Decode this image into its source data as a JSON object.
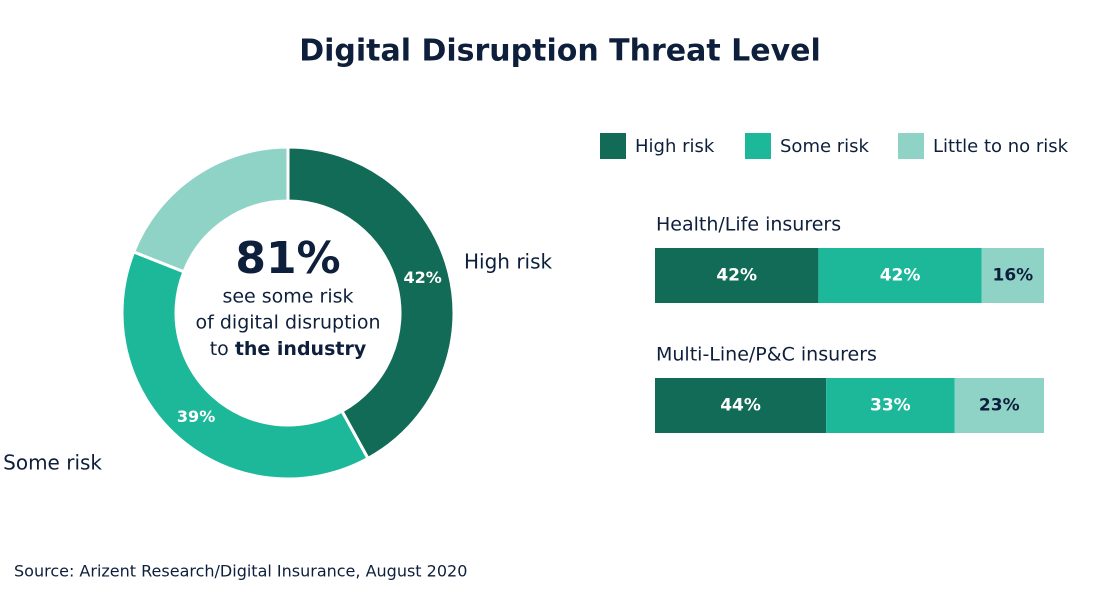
{
  "title": "Digital Disruption Threat Level",
  "source": "Source: Arizent Research/Digital Insurance, August 2020",
  "chart_data": [
    {
      "type": "pie",
      "categories": [
        "High risk",
        "Some risk",
        null
      ],
      "values": [
        42,
        39,
        19
      ],
      "value_labels": [
        "42%",
        "39%",
        null
      ],
      "colors": [
        "#126b56",
        "#1db89a",
        "#8fd3c7"
      ],
      "center_value": "81%",
      "center_lines": [
        "see some risk",
        "of digital disruption"
      ],
      "center_last": [
        "to",
        "the industry"
      ]
    },
    {
      "type": "bar",
      "orientation": "horizontal",
      "stacked": true,
      "categories": [
        "Health/Life insurers",
        "Multi-Line/P&C insurers"
      ],
      "xlim": [
        0,
        100
      ],
      "series": [
        {
          "name": "High risk",
          "color": "#126b56",
          "values": [
            42,
            44
          ],
          "value_labels": [
            "42%",
            "44%"
          ]
        },
        {
          "name": "Some risk",
          "color": "#1db89a",
          "values": [
            42,
            33
          ],
          "value_labels": [
            "42%",
            "33%"
          ]
        },
        {
          "name": "Little to no risk",
          "color": "#8fd3c7",
          "values": [
            16,
            23
          ],
          "value_labels": [
            "16%",
            "23%"
          ]
        }
      ]
    }
  ]
}
